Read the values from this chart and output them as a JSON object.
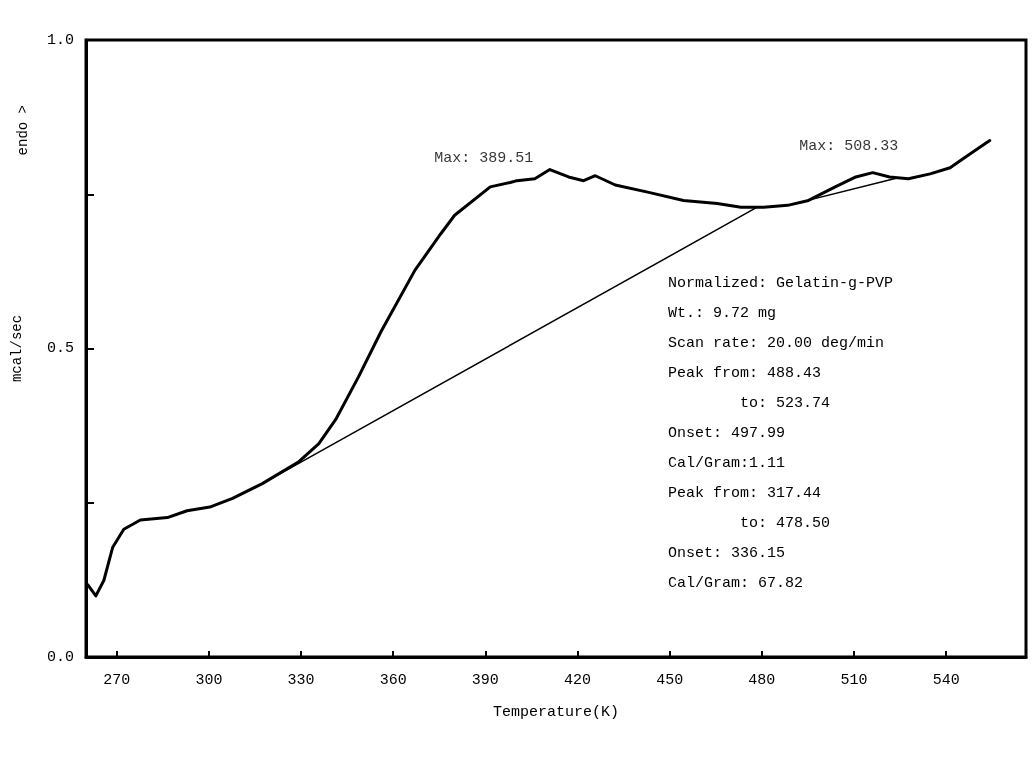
{
  "chart_data": {
    "type": "line",
    "xlabel": "Temperature(K)",
    "ylabel": "mcal/sec",
    "xlim": [
      260,
      566
    ],
    "xticks": [
      270,
      300,
      330,
      360,
      390,
      420,
      450,
      480,
      510,
      540
    ],
    "ylim": [
      0,
      1
    ],
    "yticks": [
      {
        "value": 0,
        "label": "0.0"
      },
      {
        "value": 0.25,
        "label": null
      },
      {
        "value": 0.5,
        "label": "0.5"
      },
      {
        "value": 0.75,
        "label": null
      },
      {
        "value": 1,
        "label": "1.0"
      }
    ],
    "grid": false,
    "marker": "none",
    "line_style": "solid",
    "series": [
      {
        "color": "#000000",
        "x": [
          260.6,
          263.2,
          265.8,
          268.7,
          272.3,
          277.7,
          286.5,
          292.9,
          300.3,
          307.7,
          317.4,
          329.4,
          335.8,
          341.3,
          348.7,
          356.1,
          367.1,
          375.5,
          380.0,
          391.6,
          398.1,
          400.3,
          406.1,
          411.0,
          417.1,
          422.0,
          425.8,
          432.3,
          443.2,
          454.5,
          465.5,
          473.2,
          480.6,
          488.4,
          495.2,
          503.9,
          510.6,
          516.1,
          521.6,
          527.7,
          534.8,
          541.3,
          546.8,
          554.2
        ],
        "values": [
          0.117,
          0.099,
          0.124,
          0.178,
          0.207,
          0.222,
          0.226,
          0.237,
          0.243,
          0.257,
          0.281,
          0.317,
          0.346,
          0.385,
          0.454,
          0.528,
          0.627,
          0.686,
          0.716,
          0.762,
          0.769,
          0.772,
          0.775,
          0.79,
          0.778,
          0.772,
          0.78,
          0.765,
          0.753,
          0.74,
          0.735,
          0.729,
          0.729,
          0.732,
          0.74,
          0.762,
          0.778,
          0.785,
          0.778,
          0.775,
          0.783,
          0.793,
          0.812,
          0.837
        ]
      },
      {
        "color": "#000000",
        "x": [
          317.44,
          478.5
        ],
        "values": [
          0.281,
          0.729
        ]
      },
      {
        "color": "#000000",
        "x": [
          488.43,
          523.74
        ],
        "values": [
          0.732,
          0.776
        ]
      }
    ],
    "annotations": [
      {
        "text": "Max: 389.51",
        "x": 389.51,
        "y": 0.76
      },
      {
        "text": "Max: 508.33",
        "x": 508.33,
        "y": 0.78
      },
      "endo >",
      "Normalized: Gelatin-g-PVP",
      "Wt.: 9.72 mg",
      "Scan rate: 20.00 deg/min",
      "Peak from: 488.43",
      "        to: 523.74",
      "Onset: 497.99",
      "Cal/Gram:1.11",
      "Peak from: 317.44",
      "        to: 478.50",
      "Onset: 336.15",
      "Cal/Gram: 67.82"
    ]
  }
}
